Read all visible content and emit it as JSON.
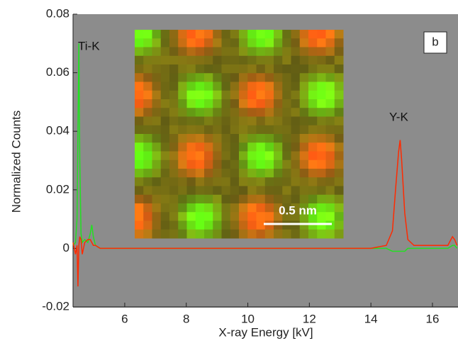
{
  "chart_data": {
    "type": "line",
    "xlabel": "X-ray Energy [kV]",
    "ylabel": "Normalized Counts",
    "annotations": [
      "Ti-K",
      "Y-K"
    ],
    "panel_label": "b",
    "scale_bar": "0.5 nm",
    "x": [
      4.32,
      4.4,
      4.45,
      4.48,
      4.51,
      4.54,
      4.58,
      4.62,
      4.7,
      4.8,
      4.88,
      4.93,
      4.98,
      5.05,
      5.2,
      5.5,
      6,
      8,
      10,
      12,
      14,
      14.5,
      14.7,
      14.8,
      14.9,
      14.95,
      15.0,
      15.1,
      15.2,
      15.4,
      16,
      16.5,
      16.65,
      16.72,
      16.8
    ],
    "series": [
      {
        "color": "#22e022",
        "values": [
          0.001,
          0.002,
          0.01,
          0.04,
          0.07,
          0.03,
          0.005,
          0.002,
          0.003,
          0.002,
          0.005,
          0.008,
          0.004,
          0.001,
          0,
          0,
          0,
          0,
          0,
          0,
          0,
          0,
          -0.001,
          -0.001,
          -0.001,
          -0.001,
          -0.001,
          -0.001,
          0,
          0,
          0,
          0,
          0.001,
          0.001,
          0
        ]
      },
      {
        "color": "#ff2a00",
        "values": [
          0.002,
          -0.002,
          0.001,
          -0.013,
          0.001,
          0.004,
          0.003,
          -0.002,
          0.002,
          0.003,
          0.003,
          0.002,
          0.001,
          0.001,
          0,
          0,
          0,
          0,
          0,
          0,
          0,
          0.001,
          0.006,
          0.02,
          0.033,
          0.037,
          0.03,
          0.012,
          0.003,
          0.001,
          0.001,
          0.001,
          0.004,
          0.003,
          0.001
        ]
      }
    ],
    "xlim": [
      4.32,
      16.83
    ],
    "xticks": [
      6,
      8,
      10,
      12,
      14,
      16
    ],
    "ylim": [
      -0.02,
      0.08
    ],
    "yticks": [
      -0.02,
      0,
      0.02,
      0.04,
      0.06,
      0.08
    ],
    "background": "#8c8c8c"
  }
}
